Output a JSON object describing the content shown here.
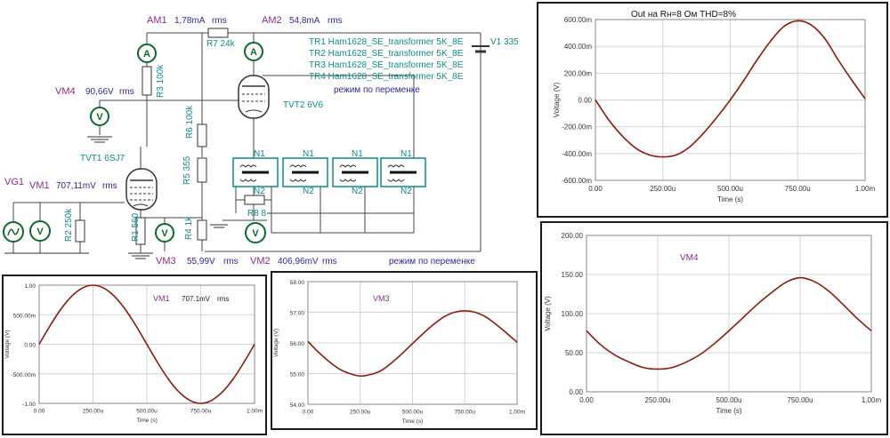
{
  "schematic": {
    "meters": {
      "am1_name": "AM1",
      "am1_value": "1,78mA",
      "am1_unit": "rms",
      "am2_name": "AM2",
      "am2_value": "54,8mA",
      "am2_unit": "rms",
      "vm4_name": "VM4",
      "vm4_value": "90,66V",
      "vm4_unit": "rms",
      "vm1_name": "VM1",
      "vm1_value": "707,11mV",
      "vm1_unit": "rms",
      "vm3_name": "VM3",
      "vm3_value": "55,99V",
      "vm3_unit": "rms",
      "vm2_name": "VM2",
      "vm2_value": "406,96mV",
      "vm2_unit": "rms"
    },
    "components": {
      "r7": "R7 24k",
      "r3": "R3 100k",
      "r6": "R6 100k",
      "r5": "R5 355",
      "r1": "R1 560",
      "r4": "R4 1k",
      "r2": "R2 250k",
      "r8": "R8 8",
      "tvt1": "TVT1 6SJ7",
      "tvt2": "TVT2 6V6",
      "v1": "V1 335",
      "vg1": "VG1"
    },
    "transformer_labels": {
      "n1": "N1",
      "n2": "N2"
    },
    "transformers": [
      "TR1 Ham1628_SE_transformer 5K_8E",
      "TR2 Ham1628_SE_transformer 5K_8E",
      "TR3 Ham1628_SE_transformer 5K_8E",
      "TR4 Ham1628_SE_transformer 5K_8E"
    ],
    "mode_note": "режим по переменке",
    "mode_note_bottom": "режим по переменке"
  },
  "colors": {
    "trace": "#8b1a0a",
    "grid": "#d4d4d4",
    "purple": "#8a2b8a",
    "teal": "#0f8a8a",
    "navy": "#2a2a9a"
  },
  "chart_data": [
    {
      "id": "out",
      "type": "line",
      "title": "Out на Rн=8 Ом THD=8%",
      "xlabel": "Time (s)",
      "ylabel": "Voltage (V)",
      "xlim": [
        0,
        1
      ],
      "ylim": [
        -600,
        600
      ],
      "yticks": [
        600,
        400,
        200,
        0,
        -200,
        -400,
        -600
      ],
      "ytick_labels": [
        "600.00m",
        "400.00m",
        "200.00m",
        "0.00",
        "-200.00m",
        "-400.00m",
        "-600.00m"
      ],
      "xtick_labels": [
        "0.00",
        "250.00u",
        "500.00u",
        "750.00u",
        "1.00m"
      ],
      "x": [
        0,
        0.05,
        0.1,
        0.15,
        0.2,
        0.25,
        0.3,
        0.35,
        0.4,
        0.45,
        0.5,
        0.55,
        0.6,
        0.65,
        0.7,
        0.75,
        0.8,
        0.85,
        0.9,
        0.95,
        1
      ],
      "y": [
        0,
        -150,
        -270,
        -360,
        -410,
        -425,
        -410,
        -350,
        -250,
        -130,
        0,
        145,
        300,
        440,
        550,
        590,
        560,
        460,
        300,
        150,
        10
      ]
    },
    {
      "id": "vm4",
      "type": "line",
      "annotation": "VM4",
      "xlabel": "Time (s)",
      "ylabel": "Voltage (V)",
      "xlim": [
        0,
        1
      ],
      "ylim": [
        0,
        200
      ],
      "yticks": [
        200,
        150,
        100,
        50,
        0
      ],
      "ytick_labels": [
        "200.00",
        "150.00",
        "100.00",
        "50.00",
        "0.00"
      ],
      "xtick_labels": [
        "0.00",
        "250.00u",
        "500.00u",
        "750.00u",
        "1.00m"
      ],
      "x": [
        0,
        0.05,
        0.1,
        0.15,
        0.2,
        0.25,
        0.3,
        0.35,
        0.4,
        0.45,
        0.5,
        0.55,
        0.6,
        0.65,
        0.7,
        0.75,
        0.8,
        0.85,
        0.9,
        0.95,
        1
      ],
      "y": [
        78,
        60,
        47,
        38,
        31,
        29,
        31,
        38,
        48,
        62,
        78,
        95,
        112,
        127,
        140,
        146,
        141,
        129,
        112,
        94,
        78
      ]
    },
    {
      "id": "vm1",
      "type": "line",
      "annotation": "VM1",
      "annotation_value": "707.1mV",
      "annotation_unit": "rms",
      "xlabel": "Time (s)",
      "ylabel": "Voltage (V)",
      "xlim": [
        0,
        1
      ],
      "ylim": [
        -1,
        1
      ],
      "yticks": [
        1,
        0.5,
        0,
        -0.5,
        -1
      ],
      "ytick_labels": [
        "1.00",
        "500.00m",
        "0.00",
        "-500.00m",
        "-1.00"
      ],
      "xtick_labels": [
        "0.00",
        "250.00u",
        "500.00u",
        "750.00u",
        "1.00m"
      ],
      "x": [
        0,
        0.05,
        0.1,
        0.15,
        0.2,
        0.25,
        0.3,
        0.35,
        0.4,
        0.45,
        0.5,
        0.55,
        0.6,
        0.65,
        0.7,
        0.75,
        0.8,
        0.85,
        0.9,
        0.95,
        1
      ],
      "y": [
        0,
        0.31,
        0.59,
        0.81,
        0.95,
        1,
        0.95,
        0.81,
        0.59,
        0.31,
        0,
        -0.31,
        -0.59,
        -0.81,
        -0.95,
        -1,
        -0.95,
        -0.81,
        -0.59,
        -0.31,
        0
      ]
    },
    {
      "id": "vm3",
      "type": "line",
      "annotation": "VM3",
      "xlabel": "Time (s)",
      "ylabel": "Voltage (V)",
      "xlim": [
        0,
        1
      ],
      "ylim": [
        54,
        58
      ],
      "yticks": [
        58,
        57,
        56,
        55,
        54
      ],
      "ytick_labels": [
        "58.00",
        "57.00",
        "56.00",
        "55.00",
        "54.00"
      ],
      "xtick_labels": [
        "0.00",
        "250.00u",
        "500.00u",
        "750.00u",
        "1.00m"
      ],
      "x": [
        0,
        0.05,
        0.1,
        0.15,
        0.2,
        0.25,
        0.3,
        0.35,
        0.4,
        0.45,
        0.5,
        0.55,
        0.6,
        0.65,
        0.7,
        0.75,
        0.8,
        0.85,
        0.9,
        0.95,
        1
      ],
      "y": [
        56.05,
        55.7,
        55.4,
        55.15,
        55.0,
        54.92,
        54.97,
        55.1,
        55.35,
        55.65,
        55.98,
        56.3,
        56.6,
        56.85,
        57.0,
        57.05,
        57.0,
        56.85,
        56.6,
        56.32,
        56.02
      ]
    }
  ]
}
